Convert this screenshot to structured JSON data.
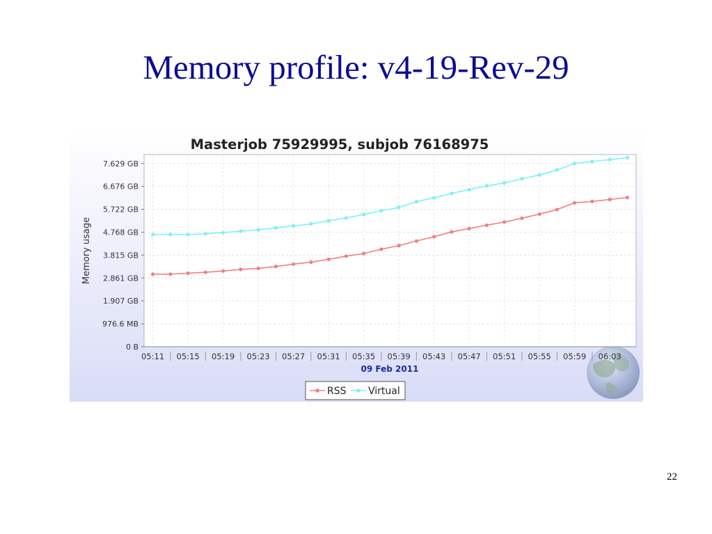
{
  "slide": {
    "title": "Memory profile: v4-19-Rev-29",
    "number": "22"
  },
  "chart_data": {
    "type": "line",
    "title": "Masterjob 75929995, subjob 76168975",
    "ylabel": "Memory usage",
    "xlabel": "09 Feb 2011",
    "x_tick_labels": [
      "05:11",
      "05:15",
      "05:19",
      "05:23",
      "05:27",
      "05:31",
      "05:35",
      "05:39",
      "05:43",
      "05:47",
      "05:51",
      "05:55",
      "05:59",
      "06:03"
    ],
    "y_tick_labels": [
      "0 B",
      "976.6 MB",
      "1.907 GB",
      "2.861 GB",
      "3.815 GB",
      "4.768 GB",
      "5.722 GB",
      "6.676 GB",
      "7.629 GB"
    ],
    "ylim": [
      0,
      8.0
    ],
    "grid": true,
    "legend_position": "bottom-center",
    "series": [
      {
        "name": "RSS",
        "color": "#f08080",
        "values": [
          3.02,
          3.02,
          3.06,
          3.1,
          3.15,
          3.22,
          3.26,
          3.34,
          3.44,
          3.52,
          3.64,
          3.77,
          3.88,
          4.06,
          4.21,
          4.4,
          4.58,
          4.78,
          4.92,
          5.06,
          5.19,
          5.35,
          5.52,
          5.71,
          5.99,
          6.05,
          6.13,
          6.21
        ]
      },
      {
        "name": "Virtual",
        "color": "#7ef0f5",
        "values": [
          4.67,
          4.67,
          4.67,
          4.7,
          4.75,
          4.81,
          4.87,
          4.95,
          5.03,
          5.11,
          5.24,
          5.36,
          5.51,
          5.66,
          5.8,
          6.04,
          6.2,
          6.38,
          6.54,
          6.7,
          6.82,
          6.99,
          7.15,
          7.36,
          7.63,
          7.71,
          7.79,
          7.87
        ]
      }
    ]
  }
}
